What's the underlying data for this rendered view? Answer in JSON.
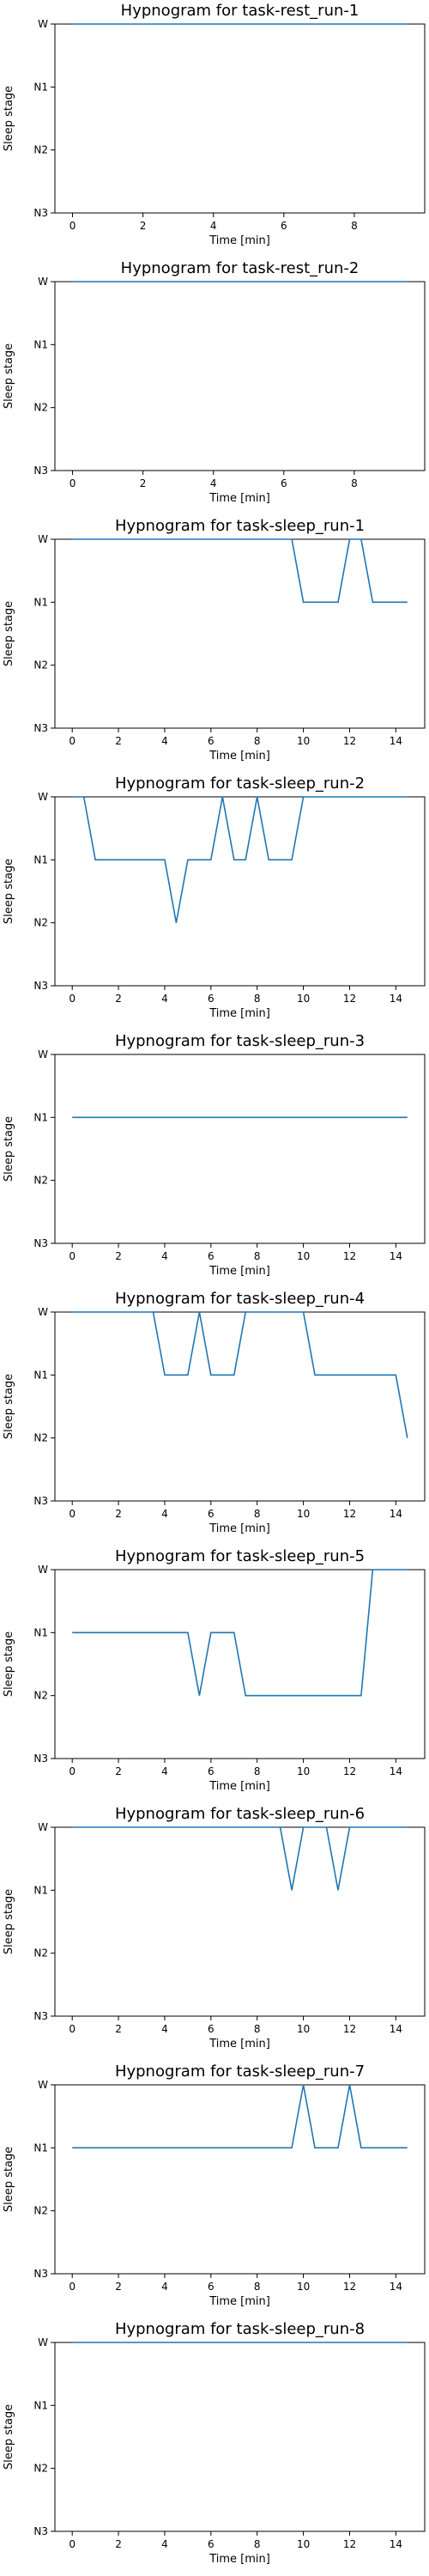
{
  "chart_data": [
    {
      "type": "line",
      "title": "Hypnogram for task-rest_run-1",
      "xlabel": "Time [min]",
      "ylabel": "Sleep stage",
      "xlim": [
        -0.5,
        10
      ],
      "xticks": [
        0,
        2,
        4,
        6,
        8
      ],
      "yticks": [
        "W",
        "N1",
        "N2",
        "N3"
      ],
      "series": [
        {
          "x": [
            0,
            9.5
          ],
          "y": [
            "W",
            "W"
          ]
        }
      ]
    },
    {
      "type": "line",
      "title": "Hypnogram for task-rest_run-2",
      "xlabel": "Time [min]",
      "ylabel": "Sleep stage",
      "xlim": [
        -0.5,
        10
      ],
      "xticks": [
        0,
        2,
        4,
        6,
        8
      ],
      "yticks": [
        "W",
        "N1",
        "N2",
        "N3"
      ],
      "series": [
        {
          "x": [
            0,
            9.5
          ],
          "y": [
            "W",
            "W"
          ]
        }
      ]
    },
    {
      "type": "line",
      "title": "Hypnogram for task-sleep_run-1",
      "xlabel": "Time [min]",
      "ylabel": "Sleep stage",
      "xlim": [
        -0.75,
        15.25
      ],
      "xticks": [
        0,
        2,
        4,
        6,
        8,
        10,
        12,
        14
      ],
      "yticks": [
        "W",
        "N1",
        "N2",
        "N3"
      ],
      "series": [
        {
          "x": [
            0,
            9.5,
            10,
            11,
            11.5,
            12,
            12.5,
            13,
            14.5
          ],
          "y": [
            "W",
            "W",
            "N1",
            "N1",
            "N1",
            "W",
            "W",
            "N1",
            "N1"
          ]
        }
      ]
    },
    {
      "type": "line",
      "title": "Hypnogram for task-sleep_run-2",
      "xlabel": "Time [min]",
      "ylabel": "Sleep stage",
      "xlim": [
        -0.75,
        15.25
      ],
      "xticks": [
        0,
        2,
        4,
        6,
        8,
        10,
        12,
        14
      ],
      "yticks": [
        "W",
        "N1",
        "N2",
        "N3"
      ],
      "series": [
        {
          "x": [
            0,
            0.5,
            1,
            2,
            3,
            4,
            4.5,
            5,
            6,
            6.5,
            7,
            7.5,
            8,
            8.5,
            9,
            9.5,
            10,
            14.5
          ],
          "y": [
            "W",
            "W",
            "N1",
            "N1",
            "N1",
            "N1",
            "N2",
            "N1",
            "N1",
            "W",
            "N1",
            "N1",
            "W",
            "N1",
            "N1",
            "N1",
            "W",
            "W"
          ]
        }
      ]
    },
    {
      "type": "line",
      "title": "Hypnogram for task-sleep_run-3",
      "xlabel": "Time [min]",
      "ylabel": "Sleep stage",
      "xlim": [
        -0.75,
        15.25
      ],
      "xticks": [
        0,
        2,
        4,
        6,
        8,
        10,
        12,
        14
      ],
      "yticks": [
        "W",
        "N1",
        "N2",
        "N3"
      ],
      "series": [
        {
          "x": [
            0,
            14.5
          ],
          "y": [
            "N1",
            "N1"
          ]
        }
      ]
    },
    {
      "type": "line",
      "title": "Hypnogram for task-sleep_run-4",
      "xlabel": "Time [min]",
      "ylabel": "Sleep stage",
      "xlim": [
        -0.75,
        15.25
      ],
      "xticks": [
        0,
        2,
        4,
        6,
        8,
        10,
        12,
        14
      ],
      "yticks": [
        "W",
        "N1",
        "N2",
        "N3"
      ],
      "series": [
        {
          "x": [
            0,
            3.5,
            4,
            5,
            5.5,
            6,
            7,
            7.5,
            9,
            10,
            10.5,
            14,
            14.5
          ],
          "y": [
            "W",
            "W",
            "N1",
            "N1",
            "W",
            "N1",
            "N1",
            "W",
            "W",
            "W",
            "N1",
            "N1",
            "N2"
          ]
        }
      ]
    },
    {
      "type": "line",
      "title": "Hypnogram for task-sleep_run-5",
      "xlabel": "Time [min]",
      "ylabel": "Sleep stage",
      "xlim": [
        -0.75,
        15.25
      ],
      "xticks": [
        0,
        2,
        4,
        6,
        8,
        10,
        12,
        14
      ],
      "yticks": [
        "W",
        "N1",
        "N2",
        "N3"
      ],
      "series": [
        {
          "x": [
            0,
            5,
            5.5,
            6,
            7,
            7.5,
            9,
            12.5,
            13,
            14.5
          ],
          "y": [
            "N1",
            "N1",
            "N2",
            "N1",
            "N1",
            "N2",
            "N2",
            "N2",
            "W",
            "W"
          ]
        }
      ]
    },
    {
      "type": "line",
      "title": "Hypnogram for task-sleep_run-6",
      "xlabel": "Time [min]",
      "ylabel": "Sleep stage",
      "xlim": [
        -0.75,
        15.25
      ],
      "xticks": [
        0,
        2,
        4,
        6,
        8,
        10,
        12,
        14
      ],
      "yticks": [
        "W",
        "N1",
        "N2",
        "N3"
      ],
      "series": [
        {
          "x": [
            0,
            9,
            9.5,
            10,
            11,
            11.5,
            12,
            14.5
          ],
          "y": [
            "W",
            "W",
            "N1",
            "W",
            "W",
            "N1",
            "W",
            "W"
          ]
        }
      ]
    },
    {
      "type": "line",
      "title": "Hypnogram for task-sleep_run-7",
      "xlabel": "Time [min]",
      "ylabel": "Sleep stage",
      "xlim": [
        -0.75,
        15.25
      ],
      "xticks": [
        0,
        2,
        4,
        6,
        8,
        10,
        12,
        14
      ],
      "yticks": [
        "W",
        "N1",
        "N2",
        "N3"
      ],
      "series": [
        {
          "x": [
            0,
            9.5,
            10,
            10.5,
            11.5,
            12,
            12.5,
            14.5
          ],
          "y": [
            "N1",
            "N1",
            "W",
            "N1",
            "N1",
            "W",
            "N1",
            "N1"
          ]
        }
      ]
    },
    {
      "type": "line",
      "title": "Hypnogram for task-sleep_run-8",
      "xlabel": "Time [min]",
      "ylabel": "Sleep stage",
      "xlim": [
        -0.75,
        15.25
      ],
      "xticks": [
        0,
        2,
        4,
        6,
        8,
        10,
        12,
        14
      ],
      "yticks": [
        "W",
        "N1",
        "N2",
        "N3"
      ],
      "series": [
        {
          "x": [
            0,
            14.5
          ],
          "y": [
            "W",
            "W"
          ]
        }
      ]
    }
  ],
  "colors": {
    "line": "#1f77b4",
    "axes": "#000000",
    "background": "#ffffff"
  }
}
